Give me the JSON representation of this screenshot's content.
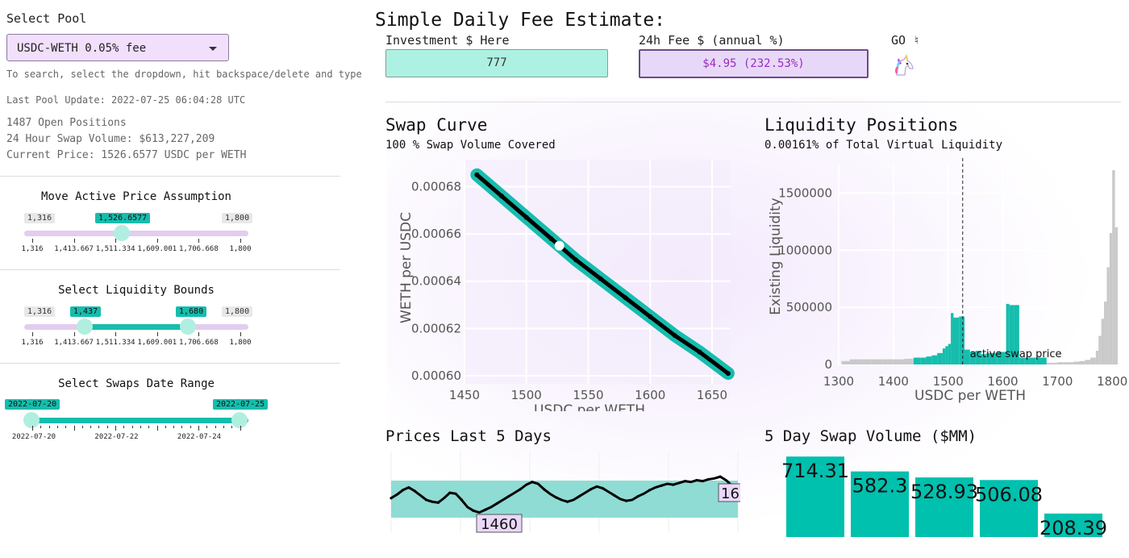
{
  "sidebar": {
    "select_pool_label": "Select Pool",
    "pool_value": "USDC-WETH 0.05% fee",
    "search_hint": "To search, select the dropdown, hit backspace/delete and type",
    "last_update": "Last Pool Update: 2022-07-25 06:04:28 UTC",
    "open_positions": "1487 Open Positions",
    "swap_volume": "24 Hour Swap Volume: $613,227,209",
    "current_price": "Current Price: 1526.6577 USDC per WETH",
    "price_slider": {
      "title": "Move Active Price Assumption",
      "min_label": "1,316",
      "max_label": "1,800",
      "value_label": "1,526.6577",
      "min": 1316,
      "max": 1800,
      "value": 1526.6577,
      "ticks": [
        "1,316",
        "1,413.667",
        "1,511.334",
        "1,609.001",
        "1,706.668",
        "1,800"
      ]
    },
    "bounds_slider": {
      "title": "Select Liquidity Bounds",
      "min_label": "1,316",
      "max_label": "1,800",
      "low_label": "1,437",
      "high_label": "1,680",
      "min": 1316,
      "max": 1800,
      "low": 1437,
      "high": 1680,
      "ticks": [
        "1,316",
        "1,413.667",
        "1,511.334",
        "1,609.001",
        "1,706.668",
        "1,800"
      ]
    },
    "date_slider": {
      "title": "Select Swaps Date Range",
      "low_label": "2022-07-20",
      "high_label": "2022-07-25",
      "ticks": [
        "2022-07-20",
        "2022-07-22",
        "2022-07-24"
      ]
    }
  },
  "estimate": {
    "title": "Simple Daily Fee Estimate:",
    "investment_label": "Investment $ Here",
    "investment_value": "777",
    "fee_label": "24h Fee $ (annual %)",
    "fee_value": "$4.95 (232.53%)",
    "go_label": "GO ♮",
    "go_icon": "unicorn-icon"
  },
  "swap_curve": {
    "title": "Swap Curve",
    "subtitle": "100 % Swap Volume Covered"
  },
  "liquidity": {
    "title": "Liquidity Positions",
    "subtitle": "0.00161% of Total Virtual Liquidity"
  },
  "prices": {
    "title": "Prices Last 5 Days",
    "low_label": "1460",
    "high_label": "16"
  },
  "volume": {
    "title": "5 Day Swap Volume ($MM)"
  },
  "chart_data": [
    {
      "type": "scatter",
      "name": "swap-curve",
      "xlabel": "USDC per WETH",
      "ylabel": "WETH per USDC",
      "xlim": [
        1450,
        1665
      ],
      "ylim": [
        0.0006,
        0.000688
      ],
      "x_ticks": [
        1450,
        1500,
        1550,
        1600,
        1650
      ],
      "y_ticks": [
        0.0006,
        0.00062,
        0.00064,
        0.00066,
        0.00068
      ],
      "y_tick_labels": [
        "0.00060",
        "0.00062",
        "0.00064",
        "0.00066",
        "0.00068"
      ],
      "curve_x": [
        1460,
        1480,
        1500,
        1520,
        1540,
        1560,
        1580,
        1600,
        1620,
        1640,
        1663
      ],
      "curve_y": [
        0.000685,
        0.000676,
        0.000667,
        0.000658,
        0.000649,
        0.000641,
        0.000633,
        0.000625,
        0.000617,
        0.00061,
        0.000601
      ],
      "active_point": [
        1526.6577,
        0.000655
      ],
      "band_color": "#16bdad",
      "grid": true
    },
    {
      "type": "bar",
      "name": "liquidity-positions",
      "xlabel": "USDC per WETH",
      "ylabel": "Existing Liquidity",
      "xlim": [
        1300,
        1810
      ],
      "ylim": [
        0,
        1750000
      ],
      "x_ticks": [
        1300,
        1400,
        1500,
        1600,
        1700,
        1800
      ],
      "y_ticks": [
        0,
        500000,
        1000000,
        1500000
      ],
      "y_tick_labels": [
        "0",
        "500000",
        "1000000",
        "1500000"
      ],
      "active_price": 1526.6577,
      "annotation": "active swap price",
      "selected_range": [
        1437,
        1680
      ],
      "bins_x": [
        1305,
        1320,
        1340,
        1360,
        1380,
        1400,
        1420,
        1437,
        1450,
        1460,
        1470,
        1480,
        1490,
        1495,
        1500,
        1505,
        1510,
        1520,
        1530,
        1540,
        1550,
        1560,
        1570,
        1580,
        1590,
        1600,
        1606,
        1612,
        1620,
        1630,
        1640,
        1650,
        1660,
        1670,
        1680,
        1690,
        1700,
        1710,
        1720,
        1730,
        1740,
        1750,
        1760,
        1770,
        1775,
        1780,
        1785,
        1790,
        1795,
        1800,
        1805
      ],
      "bins_y": [
        30000,
        45000,
        45000,
        45000,
        45000,
        45000,
        50000,
        60000,
        60000,
        70000,
        80000,
        100000,
        140000,
        160000,
        180000,
        450000,
        410000,
        420000,
        130000,
        110000,
        120000,
        90000,
        100000,
        100000,
        110000,
        110000,
        530000,
        520000,
        520000,
        60000,
        60000,
        60000,
        60000,
        60000,
        15000,
        15000,
        20000,
        20000,
        20000,
        25000,
        30000,
        40000,
        60000,
        120000,
        250000,
        400000,
        550000,
        850000,
        1150000,
        1700000,
        1200000
      ],
      "colors": {
        "selected": "#16bdad",
        "outside": "#c9c9c9"
      }
    },
    {
      "type": "line",
      "name": "prices-last-5-days",
      "x": [
        0,
        1,
        2,
        3,
        4,
        5,
        6,
        7,
        8,
        9,
        10,
        11,
        12,
        13,
        14,
        15,
        16,
        17,
        18,
        19,
        20,
        21,
        22,
        23,
        24,
        25,
        26,
        27,
        28,
        29,
        30,
        31,
        32,
        33,
        34,
        35,
        36,
        37,
        38,
        39,
        40,
        41,
        42,
        43,
        44,
        45,
        46,
        47,
        48,
        49,
        50,
        51,
        52,
        53,
        54,
        55,
        56,
        57,
        58,
        59
      ],
      "y": [
        1478,
        1482,
        1487,
        1490,
        1486,
        1481,
        1476,
        1474,
        1473,
        1478,
        1484,
        1483,
        1476,
        1468,
        1464,
        1462,
        1465,
        1468,
        1472,
        1476,
        1480,
        1484,
        1488,
        1493,
        1496,
        1494,
        1488,
        1483,
        1479,
        1476,
        1474,
        1476,
        1480,
        1484,
        1488,
        1491,
        1489,
        1485,
        1481,
        1477,
        1475,
        1476,
        1480,
        1483,
        1487,
        1490,
        1492,
        1494,
        1493,
        1495,
        1497,
        1496,
        1498,
        1497,
        1499,
        1500,
        1502,
        1498,
        1492,
        1486
      ],
      "ylim": [
        1440,
        1530
      ],
      "band_color": "#8fdcd4"
    },
    {
      "type": "bar",
      "name": "5-day-swap-volume",
      "values": [
        714.31,
        582.3,
        528.93,
        506.08,
        208.39
      ],
      "value_labels": [
        "714.31",
        "582.3",
        "528.93",
        "506.08",
        "208.39"
      ],
      "ylim": [
        0,
        730
      ],
      "color": "#00c0ae"
    }
  ]
}
